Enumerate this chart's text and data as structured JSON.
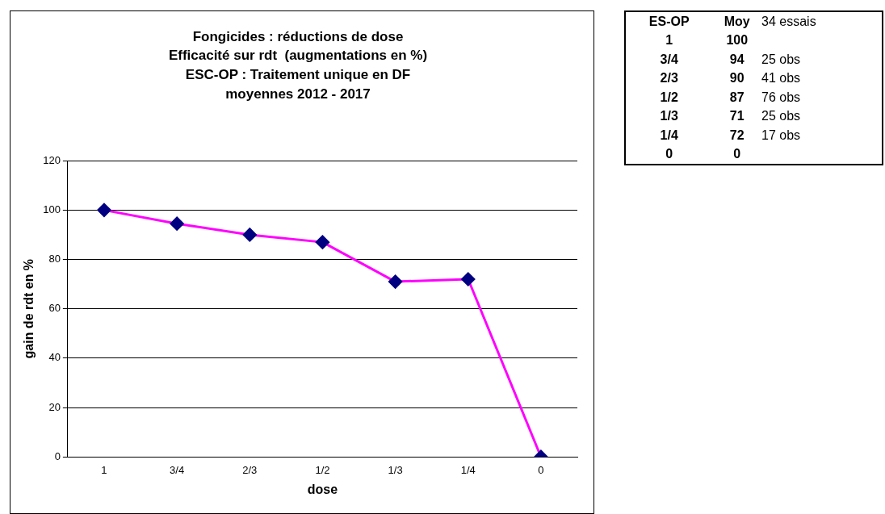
{
  "chart_data": [
    {
      "type": "line",
      "title": "Fongicides : réductions de dose\nEfficacité sur rdt  (augmentations en %)\nESC-OP : Traitement unique en DF\nmoyennes 2012 - 2017",
      "xlabel": "dose",
      "ylabel": "gain de rdt en %",
      "categories": [
        "1",
        "3/4",
        "2/3",
        "1/2",
        "1/3",
        "1/4",
        "0"
      ],
      "series": [
        {
          "color": "#ff00ff",
          "values": [
            100,
            94.5,
            90,
            87,
            71,
            72,
            0
          ]
        }
      ],
      "marker": "diamond",
      "line_style": "solid",
      "grid": "y",
      "legend": false,
      "ylim": [
        0,
        120
      ],
      "yticks": [
        0,
        20,
        40,
        60,
        80,
        100,
        120
      ]
    },
    {
      "type": "other",
      "categories": [
        "1",
        "3/4",
        "2/3",
        "1/2",
        "1/3",
        "1/4",
        "0"
      ],
      "annotations": [
        "ES-OP",
        "Moy",
        "34 essais",
        "100",
        "94",
        "25 obs",
        "90",
        "41 obs",
        "87",
        "76 obs",
        "71",
        "25 obs",
        "72",
        "17 obs",
        "0"
      ]
    }
  ]
}
